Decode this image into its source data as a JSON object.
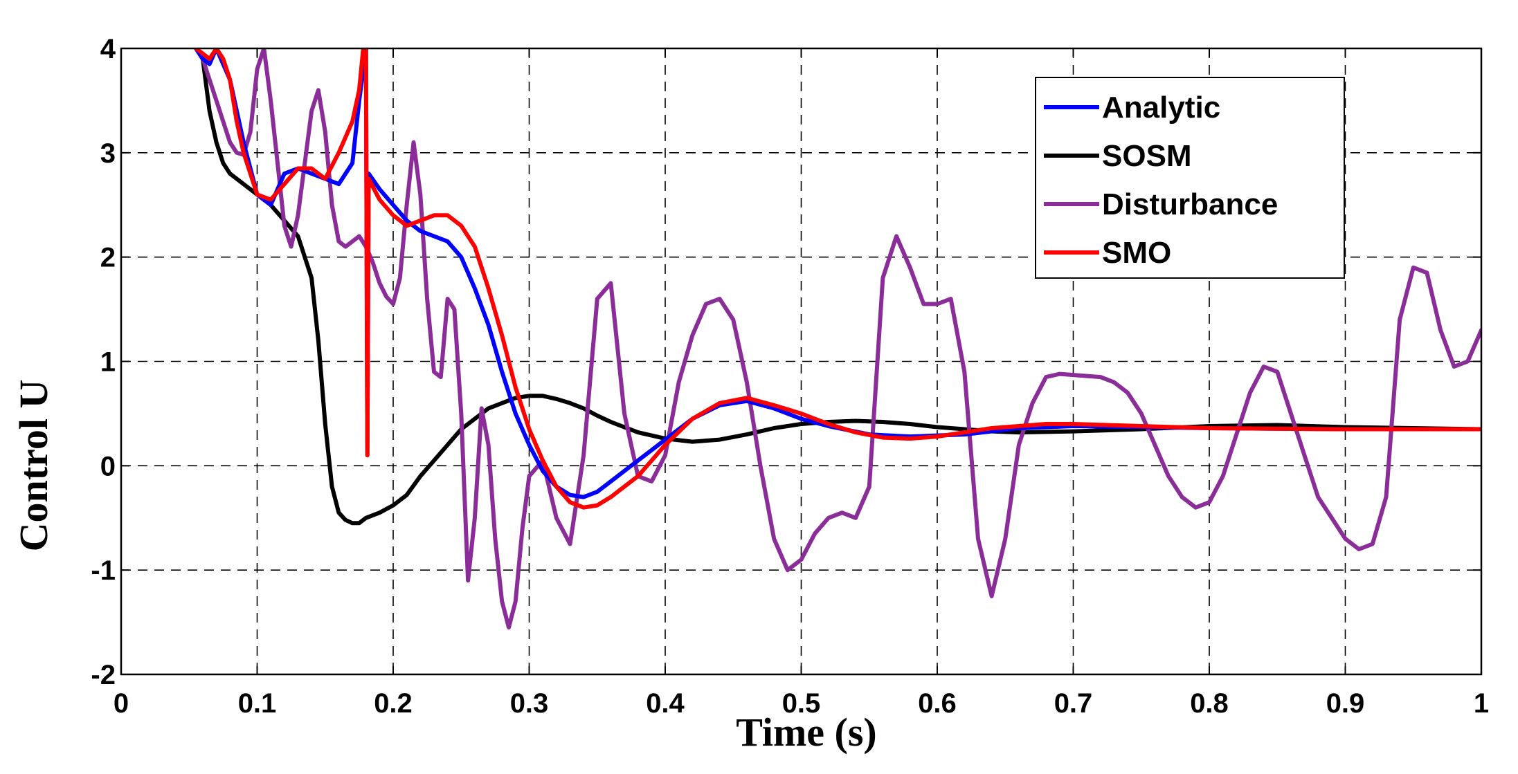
{
  "chart_data": {
    "type": "line",
    "xlabel": "Time (s)",
    "ylabel": "Control U",
    "xlim": [
      0,
      1
    ],
    "ylim": [
      -2,
      4
    ],
    "grid": true,
    "legend_position": "top-right",
    "xticks": [
      0,
      0.1,
      0.2,
      0.3,
      0.4,
      0.5,
      0.6,
      0.7,
      0.8,
      0.9,
      1
    ],
    "xtick_labels": [
      "0",
      "0.1",
      "0.2",
      "0.3",
      "0.4",
      "0.5",
      "0.6",
      "0.7",
      "0.8",
      "0.9",
      "1"
    ],
    "yticks": [
      -2,
      -1,
      0,
      1,
      2,
      3,
      4
    ],
    "ytick_labels": [
      "-2",
      "-1",
      "0",
      "1",
      "2",
      "3",
      "4"
    ],
    "series": [
      {
        "name": "Analytic",
        "color": "#0000ff",
        "x": [
          0.055,
          0.06,
          0.065,
          0.07,
          0.08,
          0.09,
          0.1,
          0.11,
          0.12,
          0.13,
          0.14,
          0.15,
          0.16,
          0.17,
          0.175,
          0.18,
          0.181,
          0.182,
          0.19,
          0.2,
          0.21,
          0.22,
          0.23,
          0.24,
          0.25,
          0.26,
          0.27,
          0.28,
          0.29,
          0.3,
          0.31,
          0.32,
          0.33,
          0.34,
          0.35,
          0.36,
          0.37,
          0.38,
          0.39,
          0.4,
          0.42,
          0.44,
          0.46,
          0.48,
          0.5,
          0.52,
          0.55,
          0.58,
          0.62,
          0.66,
          0.7,
          0.8,
          0.9,
          1.0
        ],
        "y": [
          4.0,
          3.9,
          3.85,
          4.0,
          3.7,
          3.1,
          2.6,
          2.5,
          2.8,
          2.85,
          2.8,
          2.75,
          2.7,
          2.9,
          3.5,
          4.0,
          0.1,
          2.8,
          2.65,
          2.5,
          2.35,
          2.25,
          2.2,
          2.15,
          2.0,
          1.7,
          1.35,
          0.9,
          0.5,
          0.2,
          -0.05,
          -0.2,
          -0.28,
          -0.3,
          -0.25,
          -0.15,
          -0.05,
          0.05,
          0.15,
          0.25,
          0.45,
          0.58,
          0.62,
          0.55,
          0.45,
          0.38,
          0.3,
          0.28,
          0.3,
          0.36,
          0.38,
          0.36,
          0.35,
          0.35
        ]
      },
      {
        "name": "SOSM",
        "color": "#000000",
        "x": [
          0.055,
          0.06,
          0.065,
          0.07,
          0.075,
          0.08,
          0.09,
          0.1,
          0.11,
          0.12,
          0.13,
          0.14,
          0.145,
          0.15,
          0.155,
          0.16,
          0.165,
          0.17,
          0.175,
          0.18,
          0.19,
          0.2,
          0.21,
          0.22,
          0.23,
          0.24,
          0.25,
          0.26,
          0.27,
          0.28,
          0.29,
          0.3,
          0.31,
          0.32,
          0.33,
          0.34,
          0.35,
          0.36,
          0.38,
          0.4,
          0.42,
          0.44,
          0.46,
          0.48,
          0.5,
          0.52,
          0.54,
          0.56,
          0.58,
          0.6,
          0.62,
          0.64,
          0.66,
          0.7,
          0.75,
          0.8,
          0.85,
          0.9,
          1.0
        ],
        "y": [
          4.0,
          3.9,
          3.4,
          3.1,
          2.9,
          2.8,
          2.7,
          2.6,
          2.5,
          2.35,
          2.2,
          1.8,
          1.2,
          0.4,
          -0.2,
          -0.45,
          -0.52,
          -0.55,
          -0.55,
          -0.5,
          -0.45,
          -0.38,
          -0.28,
          -0.1,
          0.05,
          0.2,
          0.35,
          0.45,
          0.55,
          0.6,
          0.65,
          0.67,
          0.67,
          0.64,
          0.6,
          0.55,
          0.48,
          0.42,
          0.32,
          0.26,
          0.23,
          0.25,
          0.3,
          0.36,
          0.4,
          0.42,
          0.43,
          0.42,
          0.4,
          0.37,
          0.35,
          0.33,
          0.32,
          0.33,
          0.35,
          0.38,
          0.39,
          0.37,
          0.35
        ]
      },
      {
        "name": "Disturbance",
        "color": "#8b2d99",
        "x": [
          0.055,
          0.06,
          0.065,
          0.07,
          0.075,
          0.08,
          0.085,
          0.09,
          0.095,
          0.1,
          0.105,
          0.11,
          0.115,
          0.12,
          0.125,
          0.13,
          0.135,
          0.14,
          0.145,
          0.15,
          0.155,
          0.16,
          0.165,
          0.17,
          0.175,
          0.18,
          0.185,
          0.19,
          0.195,
          0.2,
          0.205,
          0.21,
          0.215,
          0.22,
          0.225,
          0.23,
          0.235,
          0.24,
          0.245,
          0.25,
          0.255,
          0.26,
          0.265,
          0.27,
          0.275,
          0.28,
          0.285,
          0.29,
          0.295,
          0.3,
          0.31,
          0.32,
          0.33,
          0.34,
          0.35,
          0.36,
          0.37,
          0.38,
          0.39,
          0.4,
          0.41,
          0.42,
          0.43,
          0.44,
          0.45,
          0.46,
          0.47,
          0.48,
          0.49,
          0.5,
          0.51,
          0.52,
          0.53,
          0.54,
          0.55,
          0.56,
          0.57,
          0.58,
          0.59,
          0.6,
          0.61,
          0.62,
          0.63,
          0.64,
          0.65,
          0.66,
          0.67,
          0.68,
          0.69,
          0.7,
          0.71,
          0.72,
          0.73,
          0.74,
          0.75,
          0.76,
          0.77,
          0.78,
          0.79,
          0.8,
          0.81,
          0.82,
          0.83,
          0.84,
          0.85,
          0.86,
          0.87,
          0.88,
          0.89,
          0.9,
          0.91,
          0.92,
          0.93,
          0.94,
          0.95,
          0.96,
          0.97,
          0.98,
          0.99,
          1.0
        ],
        "y": [
          4.0,
          3.9,
          3.7,
          3.5,
          3.3,
          3.1,
          3.0,
          2.98,
          3.2,
          3.8,
          4.0,
          3.5,
          2.9,
          2.3,
          2.1,
          2.4,
          2.9,
          3.4,
          3.6,
          3.2,
          2.5,
          2.15,
          2.1,
          2.15,
          2.2,
          2.1,
          1.95,
          1.75,
          1.62,
          1.55,
          1.8,
          2.5,
          3.1,
          2.6,
          1.6,
          0.9,
          0.85,
          1.6,
          1.5,
          0.5,
          -1.1,
          -0.5,
          0.55,
          0.2,
          -0.7,
          -1.3,
          -1.55,
          -1.3,
          -0.6,
          -0.1,
          0.05,
          -0.5,
          -0.75,
          0.1,
          1.6,
          1.75,
          0.5,
          -0.1,
          -0.15,
          0.1,
          0.8,
          1.25,
          1.55,
          1.6,
          1.4,
          0.8,
          0.0,
          -0.7,
          -1.0,
          -0.9,
          -0.65,
          -0.5,
          -0.45,
          -0.5,
          -0.2,
          1.8,
          2.2,
          1.9,
          1.55,
          1.55,
          1.6,
          0.9,
          -0.7,
          -1.25,
          -0.7,
          0.2,
          0.6,
          0.85,
          0.88,
          0.87,
          0.86,
          0.85,
          0.8,
          0.7,
          0.5,
          0.2,
          -0.1,
          -0.3,
          -0.4,
          -0.35,
          -0.1,
          0.3,
          0.7,
          0.95,
          0.9,
          0.5,
          0.1,
          -0.3,
          -0.5,
          -0.7,
          -0.8,
          -0.75,
          -0.3,
          1.4,
          1.9,
          1.85,
          1.3,
          0.95,
          1.0,
          1.3
        ]
      },
      {
        "name": "SMO",
        "color": "#ff0000",
        "x": [
          0.055,
          0.06,
          0.065,
          0.07,
          0.075,
          0.08,
          0.085,
          0.09,
          0.1,
          0.11,
          0.12,
          0.13,
          0.14,
          0.15,
          0.16,
          0.17,
          0.175,
          0.178,
          0.18,
          0.181,
          0.182,
          0.19,
          0.2,
          0.21,
          0.22,
          0.23,
          0.24,
          0.25,
          0.26,
          0.27,
          0.28,
          0.29,
          0.3,
          0.31,
          0.32,
          0.33,
          0.34,
          0.35,
          0.36,
          0.37,
          0.38,
          0.39,
          0.4,
          0.42,
          0.44,
          0.46,
          0.48,
          0.5,
          0.52,
          0.54,
          0.56,
          0.58,
          0.6,
          0.62,
          0.64,
          0.66,
          0.68,
          0.7,
          0.75,
          0.8,
          0.9,
          1.0
        ],
        "y": [
          4.0,
          3.95,
          3.9,
          4.0,
          3.9,
          3.7,
          3.3,
          3.0,
          2.6,
          2.55,
          2.7,
          2.85,
          2.85,
          2.75,
          3.0,
          3.3,
          3.6,
          4.0,
          4.0,
          0.1,
          2.75,
          2.55,
          2.4,
          2.3,
          2.35,
          2.4,
          2.4,
          2.3,
          2.1,
          1.7,
          1.25,
          0.75,
          0.35,
          0.05,
          -0.2,
          -0.35,
          -0.4,
          -0.38,
          -0.3,
          -0.2,
          -0.1,
          0.05,
          0.2,
          0.45,
          0.6,
          0.65,
          0.58,
          0.5,
          0.4,
          0.32,
          0.27,
          0.26,
          0.28,
          0.32,
          0.36,
          0.38,
          0.4,
          0.4,
          0.38,
          0.36,
          0.35,
          0.35
        ]
      }
    ]
  }
}
